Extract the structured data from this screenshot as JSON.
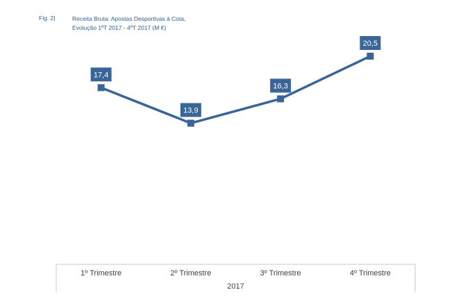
{
  "figure": {
    "label": "Fig. 2|",
    "title_line1": "Receita Bruta: Apostas Desportivas à Cota,",
    "title_line2": "Evolução 1ºT 2017 - 4ºT 2017 (M €)"
  },
  "chart_data": {
    "type": "line",
    "title": "Receita Bruta: Apostas Desportivas à Cota, Evolução 1ºT 2017 - 4ºT 2017 (M €)",
    "categories": [
      "1º Trimestre",
      "2º Trimestre",
      "3º Trimestre",
      "4º Trimestre"
    ],
    "group_label": "2017",
    "series": [
      {
        "values": [
          17.4,
          13.9,
          16.3,
          20.5
        ],
        "value_labels": [
          "17,4",
          "13,9",
          "16,3",
          "20,5"
        ],
        "color": "#3a6598"
      }
    ],
    "ylim": [
      0,
      23.3
    ],
    "grid": false,
    "legend": "none",
    "colors": {
      "line": "#3a6598",
      "label_bg": "#3a6598",
      "axis": "#c8c8c8",
      "text": "#404040",
      "title": "#2f5f96"
    }
  }
}
